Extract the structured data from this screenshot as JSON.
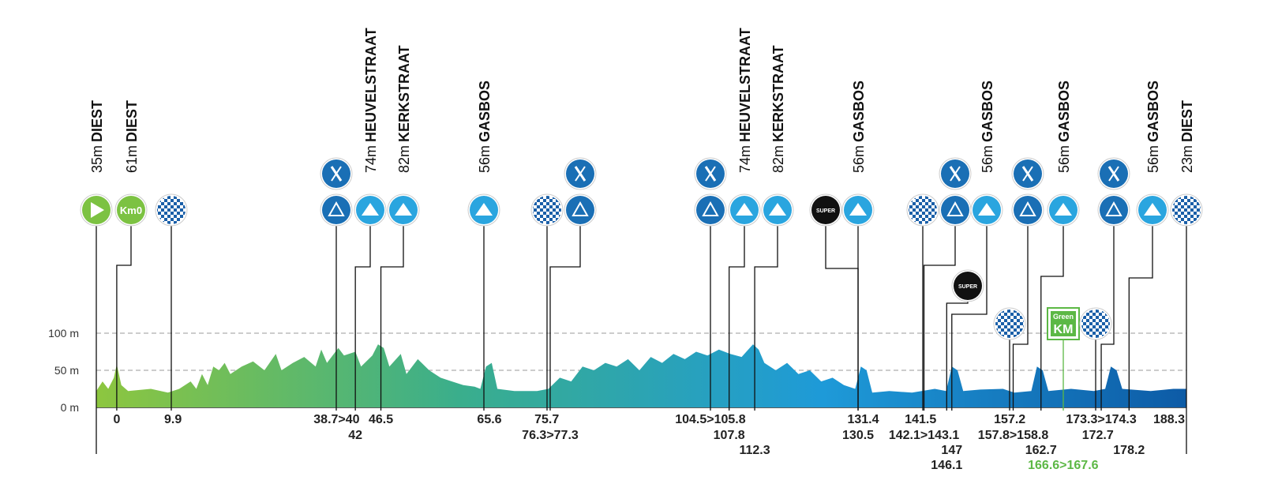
{
  "chart_data": {
    "type": "area",
    "xlim": [
      -3.6,
      188.3
    ],
    "ylim": [
      0,
      100
    ],
    "yticks": [
      {
        "value": 0,
        "label": "0 m"
      },
      {
        "value": 50,
        "label": "50 m"
      },
      {
        "value": 100,
        "label": "100 m"
      }
    ],
    "grid": true,
    "colors": [
      "#8dc63f",
      "#3aae8c",
      "#1e9ad8",
      "#0d5ba6"
    ],
    "x": [
      -3.6,
      -2.5,
      -1.5,
      -0.5,
      0,
      0.8,
      2,
      6,
      9,
      11,
      13,
      14,
      15,
      16,
      17,
      18,
      19,
      20,
      22,
      24,
      26,
      28,
      29,
      31,
      33,
      35,
      36,
      37,
      39,
      40,
      42,
      43,
      45,
      46,
      47,
      48,
      50,
      51,
      53,
      55,
      57,
      59,
      61,
      63,
      64,
      65,
      66,
      67,
      70,
      74,
      76,
      78,
      80,
      82,
      84,
      86,
      88,
      90,
      92,
      94,
      96,
      98,
      100,
      102,
      104,
      106,
      108,
      110,
      112,
      113,
      114,
      116,
      118,
      120,
      122,
      124,
      126,
      128,
      130,
      131,
      132,
      133,
      136,
      140,
      144,
      146,
      147,
      148,
      149,
      152,
      156,
      158,
      161,
      162,
      163,
      164,
      168,
      172,
      174,
      175,
      176,
      177,
      182,
      186,
      188.3
    ],
    "values": [
      22,
      35,
      25,
      40,
      58,
      30,
      22,
      25,
      20,
      25,
      35,
      25,
      45,
      30,
      55,
      50,
      60,
      45,
      55,
      62,
      50,
      72,
      50,
      60,
      68,
      55,
      78,
      60,
      80,
      70,
      75,
      55,
      70,
      85,
      80,
      55,
      72,
      45,
      65,
      50,
      40,
      35,
      30,
      28,
      25,
      55,
      60,
      25,
      22,
      22,
      25,
      40,
      35,
      55,
      50,
      60,
      55,
      65,
      50,
      68,
      60,
      72,
      65,
      75,
      70,
      78,
      72,
      68,
      85,
      78,
      60,
      50,
      60,
      45,
      50,
      35,
      40,
      30,
      25,
      55,
      50,
      20,
      22,
      20,
      25,
      22,
      55,
      50,
      22,
      24,
      25,
      20,
      22,
      55,
      50,
      22,
      25,
      22,
      25,
      55,
      50,
      25,
      22,
      25,
      25
    ],
    "icon_texts": {
      "km0": "Km0",
      "green": "Green",
      "greenkm": "KM",
      "super": "SUPER"
    },
    "points": [
      {
        "icons": [
          "start"
        ],
        "altitude": "35m",
        "place": "DIEST"
      },
      {
        "km": 0,
        "icons": [
          "km0"
        ],
        "altitude": "61m",
        "place": "DIEST"
      },
      {
        "km": 9.9,
        "icons": [
          "sprint"
        ]
      },
      {
        "km": 38.7,
        "label": "38.7>40",
        "icons": [
          "waste",
          "feed"
        ]
      },
      {
        "km": 42,
        "icons": [
          "climb"
        ],
        "altitude": "74m",
        "place": "HEUVELSTRAAT"
      },
      {
        "km": 46.5,
        "icons": [
          "climb"
        ],
        "altitude": "82m",
        "place": "KERKSTRAAT"
      },
      {
        "km": 65.6,
        "icons": [
          "climb"
        ],
        "altitude": "56m",
        "place": "GASBOS"
      },
      {
        "km": 75.7,
        "icons": [
          "sprint"
        ]
      },
      {
        "km": 76.3,
        "label": "76.3>77.3",
        "icons": [
          "waste",
          "feed"
        ]
      },
      {
        "km": 104.5,
        "label": "104.5>105.8",
        "icons": [
          "waste",
          "feed"
        ]
      },
      {
        "km": 107.8,
        "icons": [
          "climb"
        ],
        "altitude": "74m",
        "place": "HEUVELSTRAAT"
      },
      {
        "km": 112.3,
        "icons": [
          "climb"
        ],
        "altitude": "82m",
        "place": "KERKSTRAAT"
      },
      {
        "km": 130.5,
        "icons": [
          "super"
        ]
      },
      {
        "km": 131.4,
        "icons": [
          "climb"
        ],
        "altitude": "56m",
        "place": "GASBOS"
      },
      {
        "km": 141.5,
        "icons": [
          "sprint"
        ]
      },
      {
        "km": 142.1,
        "label": "142.1>143.1",
        "icons": [
          "waste",
          "feed"
        ]
      },
      {
        "km": 146.1,
        "icons": [
          "super"
        ]
      },
      {
        "km": 147,
        "icons": [
          "climb"
        ],
        "altitude": "56m",
        "place": "GASBOS"
      },
      {
        "km": 157.2,
        "icons": [
          "sprint"
        ]
      },
      {
        "km": 157.8,
        "label": "157.8>158.8",
        "icons": [
          "waste",
          "feed"
        ]
      },
      {
        "km": 162.7,
        "icons": [
          "climb"
        ],
        "altitude": "56m",
        "place": "GASBOS"
      },
      {
        "km": 166.6,
        "label": "166.6>167.6",
        "icons": [
          "greenkm"
        ]
      },
      {
        "km": 172.7,
        "icons": [
          "sprint"
        ]
      },
      {
        "km": 173.3,
        "label": "173.3>174.3",
        "icons": [
          "waste",
          "feed"
        ]
      },
      {
        "km": 178.2,
        "icons": [
          "climb"
        ],
        "altitude": "56m",
        "place": "GASBOS"
      },
      {
        "km": 188.3,
        "icons": [
          "sprint"
        ],
        "altitude": "23m",
        "place": "DIEST"
      }
    ]
  }
}
